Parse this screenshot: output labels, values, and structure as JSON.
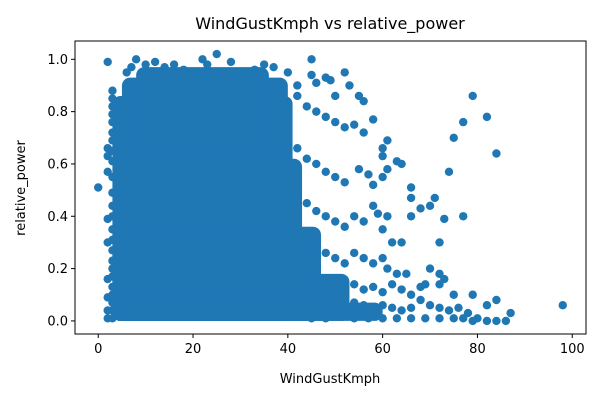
{
  "chart_data": {
    "type": "scatter",
    "title": "WindGustKmph vs relative_power",
    "xlabel": "WindGustKmph",
    "ylabel": "relative_power",
    "xlim": [
      -4.9,
      102.9
    ],
    "ylim": [
      -0.05,
      1.07
    ],
    "x_ticks": [
      0,
      20,
      40,
      60,
      80,
      100
    ],
    "x_tick_labels": [
      "0",
      "20",
      "40",
      "60",
      "80",
      "100"
    ],
    "y_ticks": [
      0.0,
      0.2,
      0.4,
      0.6,
      0.8,
      1.0
    ],
    "y_tick_labels": [
      "0.0",
      "0.2",
      "0.4",
      "0.6",
      "0.8",
      "1.0"
    ],
    "grid": false,
    "marker_color": "#1f77b4",
    "series": [
      {
        "points": [
          [
            0,
            0.51
          ],
          [
            2,
            0.99
          ],
          [
            2,
            0.66
          ],
          [
            2,
            0.63
          ],
          [
            2,
            0.57
          ],
          [
            2,
            0.39
          ],
          [
            2,
            0.3
          ],
          [
            2,
            0.16
          ],
          [
            2,
            0.09
          ],
          [
            2,
            0.04
          ],
          [
            2,
            0.01
          ],
          [
            3,
            0.88
          ],
          [
            3,
            0.85
          ],
          [
            3,
            0.82
          ],
          [
            3,
            0.79
          ],
          [
            3,
            0.76
          ],
          [
            3,
            0.72
          ],
          [
            3,
            0.69
          ],
          [
            3,
            0.65
          ],
          [
            3,
            0.61
          ],
          [
            3,
            0.55
          ],
          [
            3,
            0.49
          ],
          [
            3,
            0.44
          ],
          [
            3,
            0.4
          ],
          [
            3,
            0.35
          ],
          [
            3,
            0.31
          ],
          [
            3,
            0.27
          ],
          [
            3,
            0.23
          ],
          [
            3,
            0.2
          ],
          [
            3,
            0.17
          ],
          [
            3,
            0.13
          ],
          [
            3,
            0.1
          ],
          [
            3,
            0.07
          ],
          [
            3,
            0.04
          ],
          [
            3,
            0.01
          ],
          [
            6,
            0.95
          ],
          [
            7,
            0.97
          ],
          [
            8,
            1.0
          ],
          [
            10,
            0.98
          ],
          [
            12,
            0.99
          ],
          [
            14,
            0.97
          ],
          [
            16,
            0.98
          ],
          [
            18,
            0.96
          ],
          [
            22,
            1.0
          ],
          [
            23,
            0.98
          ],
          [
            25,
            1.02
          ],
          [
            28,
            0.99
          ],
          [
            30,
            0.95
          ],
          [
            33,
            0.96
          ],
          [
            35,
            0.98
          ],
          [
            37,
            0.97
          ],
          [
            40,
            0.95
          ],
          [
            42,
            0.9
          ],
          [
            45,
            1.0
          ],
          [
            45,
            0.94
          ],
          [
            46,
            0.91
          ],
          [
            48,
            0.93
          ],
          [
            49,
            0.92
          ],
          [
            50,
            0.86
          ],
          [
            52,
            0.95
          ],
          [
            53,
            0.9
          ],
          [
            55,
            0.86
          ],
          [
            56,
            0.84
          ],
          [
            42,
            0.86
          ],
          [
            44,
            0.82
          ],
          [
            46,
            0.8
          ],
          [
            48,
            0.78
          ],
          [
            50,
            0.76
          ],
          [
            52,
            0.74
          ],
          [
            54,
            0.75
          ],
          [
            56,
            0.72
          ],
          [
            58,
            0.77
          ],
          [
            61,
            0.69
          ],
          [
            60,
            0.66
          ],
          [
            60,
            0.63
          ],
          [
            42,
            0.66
          ],
          [
            44,
            0.62
          ],
          [
            46,
            0.6
          ],
          [
            48,
            0.57
          ],
          [
            50,
            0.55
          ],
          [
            52,
            0.53
          ],
          [
            55,
            0.58
          ],
          [
            57,
            0.56
          ],
          [
            58,
            0.52
          ],
          [
            60,
            0.55
          ],
          [
            61,
            0.58
          ],
          [
            63,
            0.61
          ],
          [
            64,
            0.6
          ],
          [
            66,
            0.51
          ],
          [
            66,
            0.47
          ],
          [
            68,
            0.43
          ],
          [
            70,
            0.44
          ],
          [
            71,
            0.47
          ],
          [
            42,
            0.48
          ],
          [
            44,
            0.45
          ],
          [
            46,
            0.42
          ],
          [
            48,
            0.4
          ],
          [
            50,
            0.38
          ],
          [
            52,
            0.36
          ],
          [
            54,
            0.4
          ],
          [
            56,
            0.38
          ],
          [
            58,
            0.44
          ],
          [
            59,
            0.41
          ],
          [
            60,
            0.35
          ],
          [
            61,
            0.4
          ],
          [
            62,
            0.3
          ],
          [
            64,
            0.3
          ],
          [
            66,
            0.4
          ],
          [
            73,
            0.39
          ],
          [
            72,
            0.3
          ],
          [
            44,
            0.3
          ],
          [
            46,
            0.28
          ],
          [
            48,
            0.26
          ],
          [
            50,
            0.24
          ],
          [
            52,
            0.22
          ],
          [
            54,
            0.26
          ],
          [
            56,
            0.24
          ],
          [
            58,
            0.22
          ],
          [
            60,
            0.24
          ],
          [
            61,
            0.2
          ],
          [
            63,
            0.18
          ],
          [
            65,
            0.18
          ],
          [
            70,
            0.2
          ],
          [
            42,
            0.2
          ],
          [
            44,
            0.18
          ],
          [
            46,
            0.16
          ],
          [
            48,
            0.14
          ],
          [
            50,
            0.13
          ],
          [
            52,
            0.12
          ],
          [
            54,
            0.14
          ],
          [
            56,
            0.12
          ],
          [
            58,
            0.13
          ],
          [
            60,
            0.11
          ],
          [
            62,
            0.14
          ],
          [
            64,
            0.12
          ],
          [
            66,
            0.1
          ],
          [
            68,
            0.13
          ],
          [
            72,
            0.18
          ],
          [
            73,
            0.16
          ],
          [
            72,
            0.14
          ],
          [
            69,
            0.14
          ],
          [
            42,
            0.1
          ],
          [
            44,
            0.09
          ],
          [
            46,
            0.08
          ],
          [
            48,
            0.07
          ],
          [
            50,
            0.06
          ],
          [
            52,
            0.05
          ],
          [
            54,
            0.07
          ],
          [
            56,
            0.06
          ],
          [
            58,
            0.05
          ],
          [
            60,
            0.06
          ],
          [
            62,
            0.05
          ],
          [
            64,
            0.04
          ],
          [
            66,
            0.05
          ],
          [
            68,
            0.08
          ],
          [
            70,
            0.06
          ],
          [
            72,
            0.05
          ],
          [
            74,
            0.04
          ],
          [
            75,
            0.1
          ],
          [
            76,
            0.05
          ],
          [
            78,
            0.03
          ],
          [
            79,
            0.1
          ],
          [
            42,
            0.02
          ],
          [
            45,
            0.01
          ],
          [
            48,
            0.01
          ],
          [
            51,
            0.02
          ],
          [
            54,
            0.01
          ],
          [
            57,
            0.01
          ],
          [
            60,
            0.01
          ],
          [
            63,
            0.01
          ],
          [
            66,
            0.01
          ],
          [
            69,
            0.01
          ],
          [
            72,
            0.01
          ],
          [
            75,
            0.01
          ],
          [
            77,
            0.01
          ],
          [
            79,
            0.0
          ],
          [
            80,
            0.01
          ],
          [
            82,
            0.0
          ],
          [
            84,
            0.0
          ],
          [
            86,
            0.0
          ],
          [
            79,
            0.86
          ],
          [
            82,
            0.78
          ],
          [
            77,
            0.76
          ],
          [
            75,
            0.7
          ],
          [
            84,
            0.64
          ],
          [
            74,
            0.57
          ],
          [
            77,
            0.4
          ],
          [
            82,
            0.06
          ],
          [
            84,
            0.08
          ],
          [
            87,
            0.03
          ],
          [
            98,
            0.06
          ]
        ]
      }
    ]
  }
}
